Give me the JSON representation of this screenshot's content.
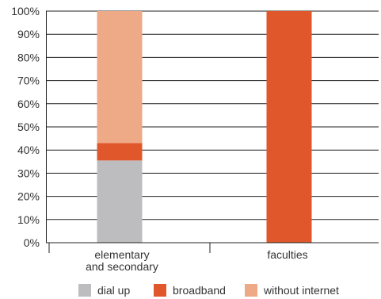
{
  "chart_data": {
    "type": "bar",
    "stacked": true,
    "categories": [
      "elementary and secondary",
      "faculties"
    ],
    "category_lines": [
      [
        "elementary",
        "and secondary"
      ],
      [
        "faculties"
      ]
    ],
    "series": [
      {
        "name": "dial up",
        "values": [
          35.5,
          0
        ],
        "color": "#bdbdc0"
      },
      {
        "name": "broadband",
        "values": [
          7.5,
          100
        ],
        "color": "#e0572b"
      },
      {
        "name": "without internet",
        "values": [
          57,
          0
        ],
        "color": "#eea986"
      }
    ],
    "ylim": [
      0,
      100
    ],
    "yticks": [
      "0%",
      "10%",
      "20%",
      "30%",
      "40%",
      "50%",
      "60%",
      "70%",
      "80%",
      "90%",
      "100%"
    ],
    "grid": true,
    "legend_position": "bottom",
    "title": "",
    "xlabel": "",
    "ylabel": ""
  }
}
